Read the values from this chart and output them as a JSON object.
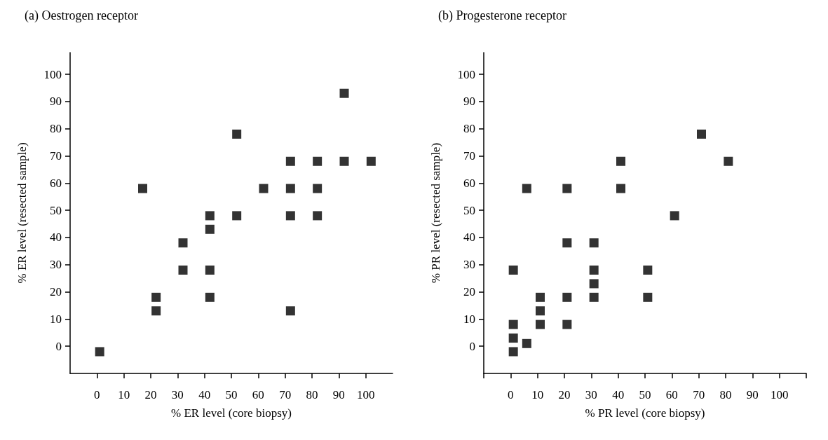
{
  "chart_data": [
    {
      "type": "scatter",
      "title": "(a) Oestrogen receptor",
      "xlabel": "% ER level (core biopsy)",
      "ylabel": "% ER level (resected sample)",
      "marker": "square",
      "grid": false,
      "xlim": [
        -10,
        110
      ],
      "ylim": [
        -10,
        108
      ],
      "xticks": [
        0,
        10,
        20,
        30,
        40,
        50,
        60,
        70,
        80,
        90,
        100
      ],
      "yticks": [
        0,
        10,
        20,
        30,
        40,
        50,
        60,
        70,
        80,
        90,
        100
      ],
      "series": [
        {
          "color": "#000000",
          "x": [
            1,
            17,
            22,
            22,
            32,
            32,
            42,
            42,
            42,
            42,
            52,
            52,
            62,
            72,
            72,
            72,
            72,
            82,
            82,
            82,
            92,
            92,
            102
          ],
          "values": [
            -2,
            58,
            18,
            13,
            38,
            28,
            48,
            43,
            28,
            18,
            78,
            48,
            58,
            68,
            58,
            48,
            13,
            68,
            58,
            48,
            93,
            68,
            68
          ]
        }
      ]
    },
    {
      "type": "scatter",
      "title": "(b) Progesterone receptor",
      "xlabel": "% PR level (core biopsy)",
      "ylabel": "% PR level (resected sample)",
      "marker": "square",
      "grid": false,
      "xlim": [
        -10,
        110
      ],
      "ylim": [
        -10,
        108
      ],
      "xticks": [
        {
          "value": -10,
          "label": null
        },
        0,
        10,
        20,
        30,
        40,
        50,
        60,
        70,
        80,
        90,
        100,
        {
          "value": 110,
          "label": null
        }
      ],
      "yticks": [
        0,
        10,
        20,
        30,
        40,
        50,
        60,
        70,
        80,
        90,
        100
      ],
      "series": [
        {
          "color": "#000000",
          "x": [
            1,
            1,
            1,
            1,
            6,
            6,
            11,
            11,
            11,
            21,
            21,
            21,
            21,
            31,
            31,
            31,
            31,
            41,
            41,
            51,
            51,
            61,
            71,
            81
          ],
          "values": [
            28,
            8,
            3,
            -2,
            58,
            1,
            18,
            13,
            8,
            58,
            38,
            18,
            8,
            38,
            28,
            23,
            18,
            68,
            58,
            28,
            18,
            48,
            78,
            68
          ]
        }
      ]
    }
  ]
}
